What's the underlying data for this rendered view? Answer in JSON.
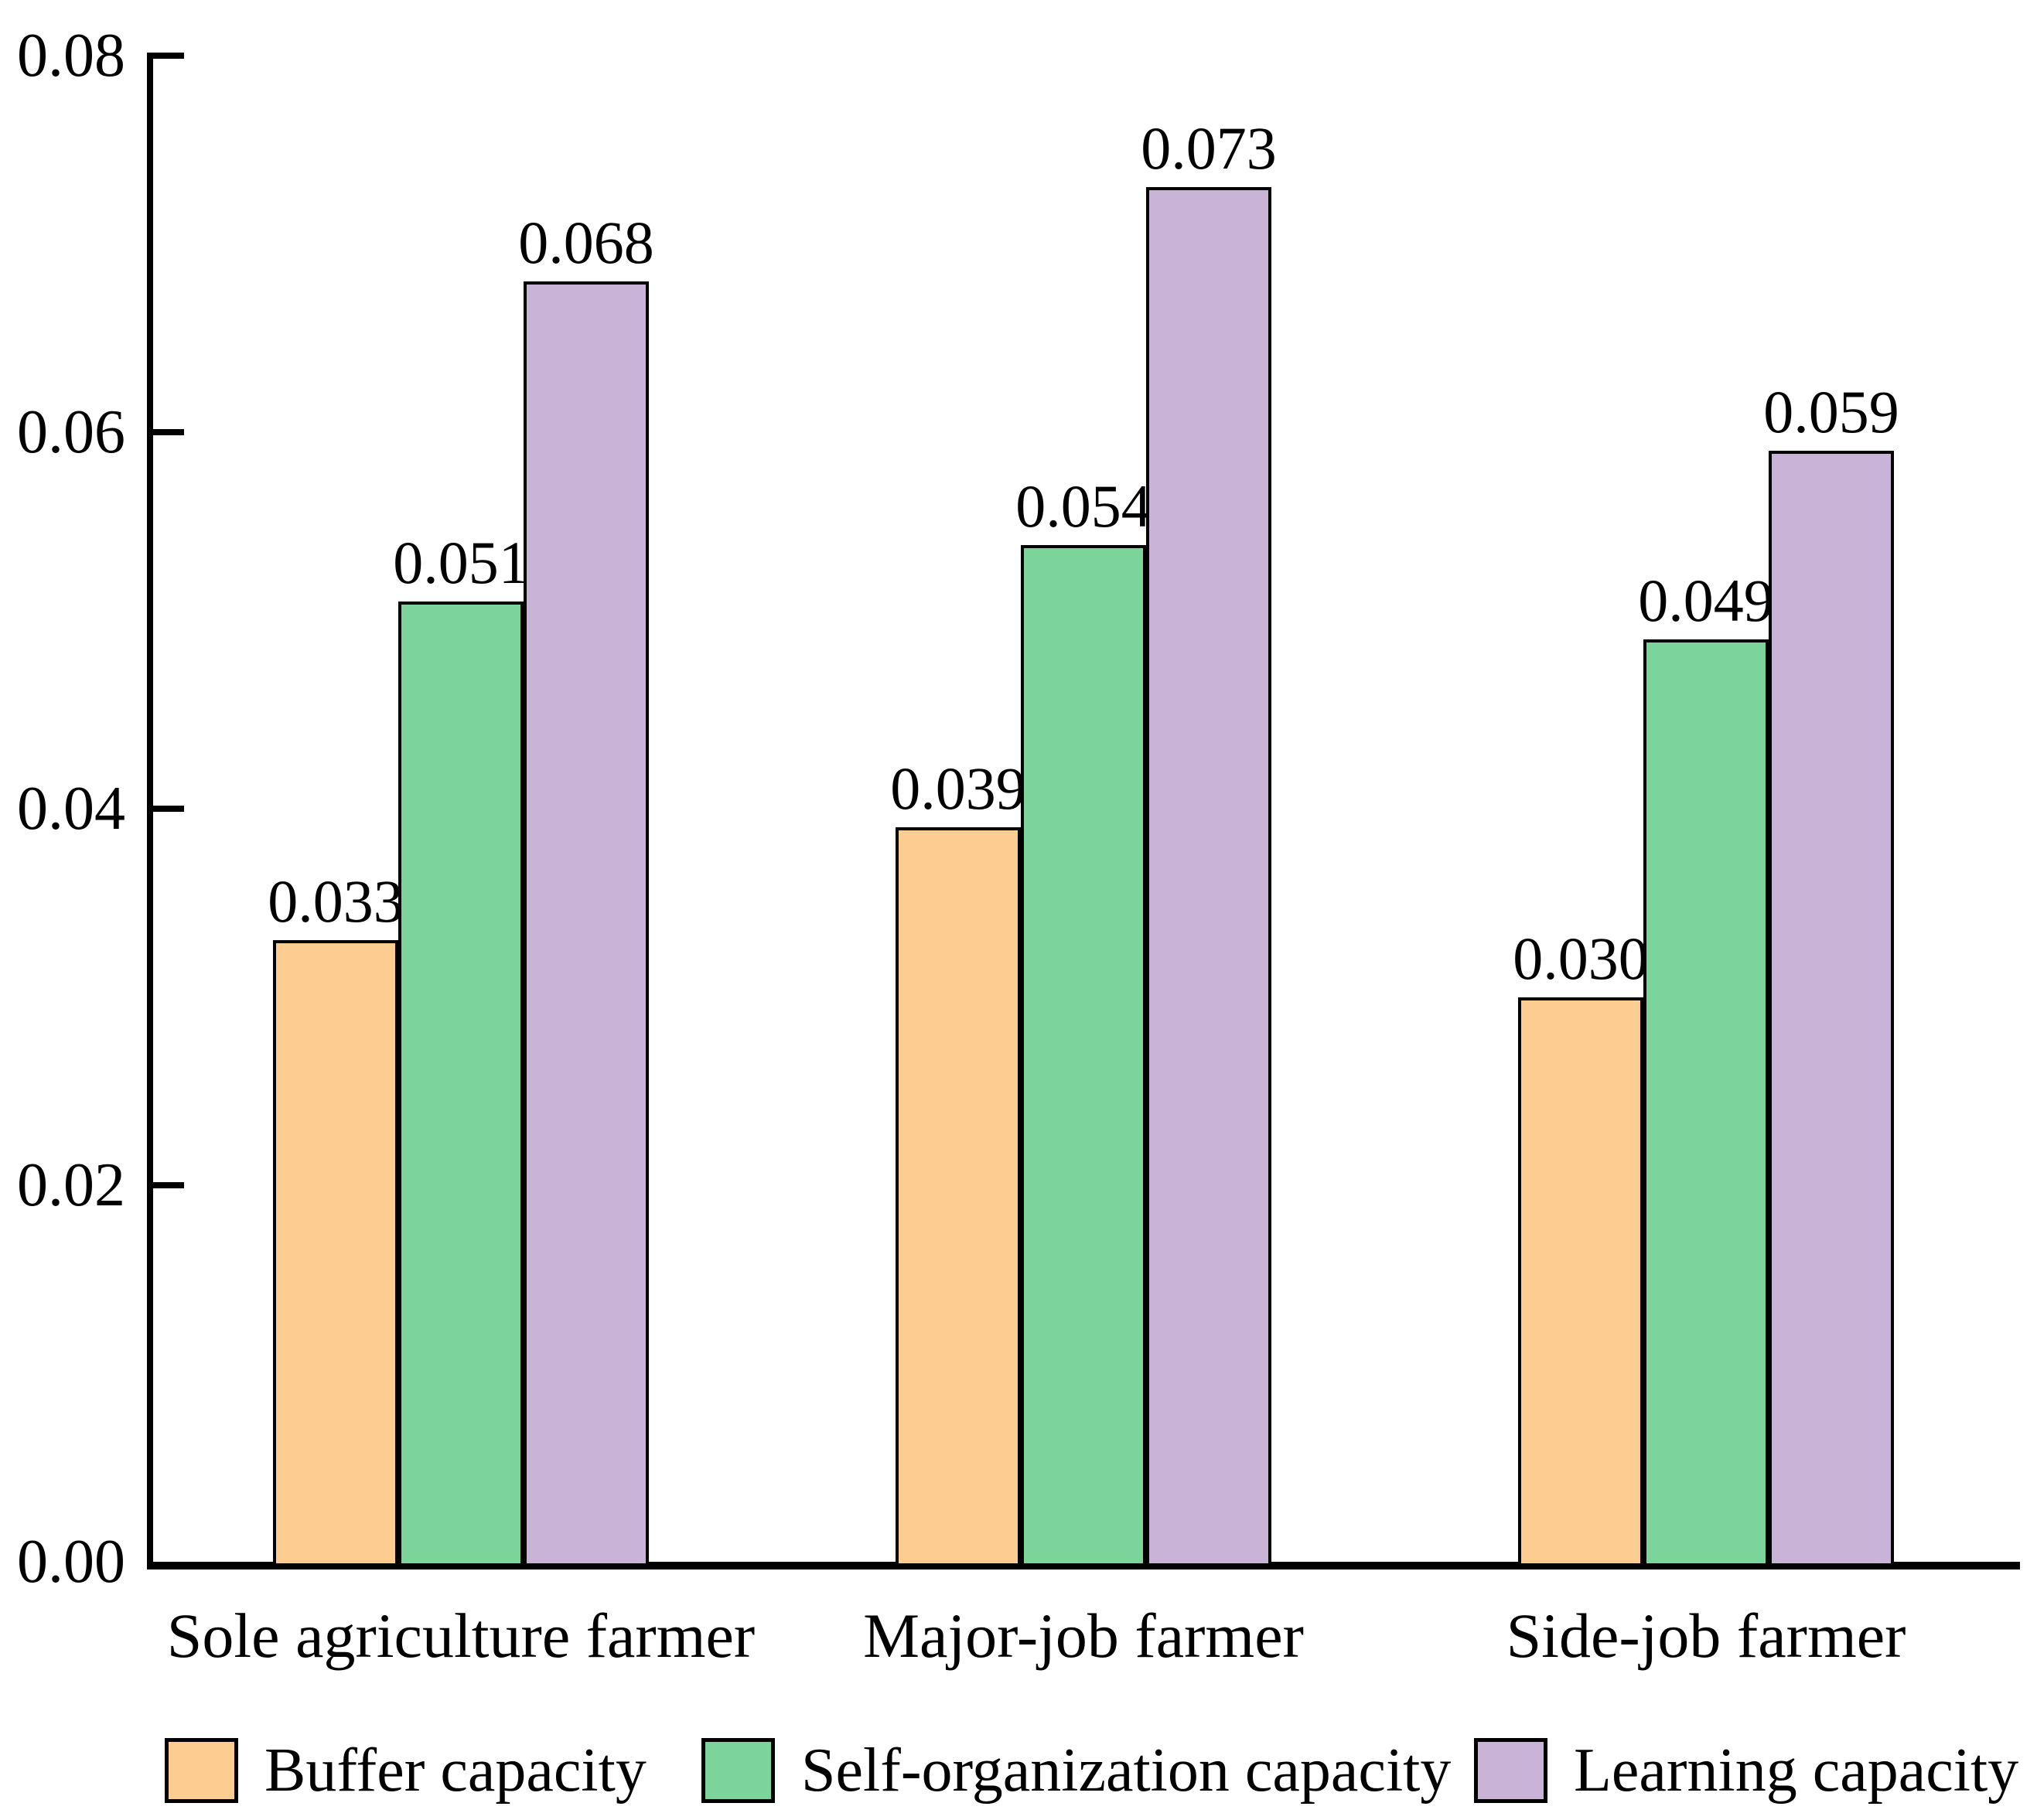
{
  "figure": {
    "background": "#ffffff",
    "axis_color": "#000000",
    "text_color": "#000000"
  },
  "chart_data": {
    "type": "bar",
    "title": "",
    "xlabel": "",
    "ylabel": "",
    "grid": false,
    "legend_position": "bottom",
    "ylim": [
      0,
      0.08
    ],
    "yticks": [
      {
        "value": 0.0,
        "label": "0.00"
      },
      {
        "value": 0.02,
        "label": "0.02"
      },
      {
        "value": 0.04,
        "label": "0.04"
      },
      {
        "value": 0.06,
        "label": "0.06"
      },
      {
        "value": 0.08,
        "label": "0.08"
      }
    ],
    "categories": [
      "Sole agriculture farmer",
      "Major-job farmer",
      "Side-job farmer"
    ],
    "series": [
      {
        "name": "Buffer capacity",
        "color": "#FCCC90",
        "values": [
          0.033,
          0.039,
          0.03
        ],
        "labels": [
          "0.033",
          "0.039",
          "0.030"
        ]
      },
      {
        "name": "Self-organization capacity",
        "color": "#7DD49B",
        "values": [
          0.051,
          0.054,
          0.049
        ],
        "labels": [
          "0.051",
          "0.054",
          "0.049"
        ]
      },
      {
        "name": "Learning capacity",
        "color": "#C9B3D7",
        "values": [
          0.068,
          0.073,
          0.059
        ],
        "labels": [
          "0.068",
          "0.073",
          "0.059"
        ]
      }
    ],
    "bar_edge_color": "#000000"
  }
}
